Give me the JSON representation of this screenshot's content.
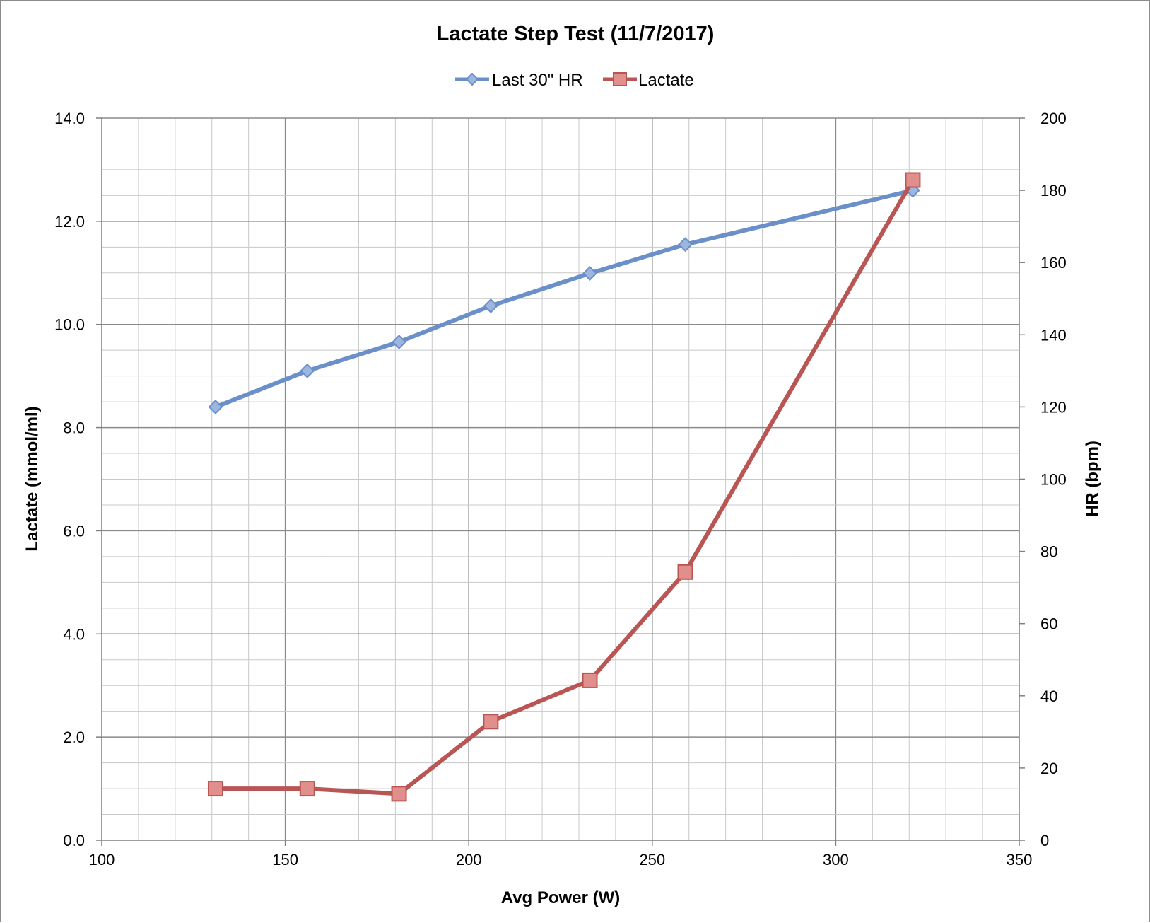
{
  "chart_data": {
    "type": "line",
    "title": "Lactate Step Test (11/7/2017)",
    "xlabel": "Avg Power (W)",
    "ylabel_left": "Lactate (mmol/ml)",
    "ylabel_right": "HR (bpm)",
    "xlim": [
      100,
      350
    ],
    "ylim_left": [
      0,
      14
    ],
    "ylim_right": [
      0,
      200
    ],
    "x_ticks": [
      "100",
      "150",
      "200",
      "250",
      "300",
      "350"
    ],
    "y_left_ticks": [
      "0.0",
      "2.0",
      "4.0",
      "6.0",
      "8.0",
      "10.0",
      "12.0",
      "14.0"
    ],
    "y_right_ticks": [
      "0",
      "20",
      "40",
      "60",
      "80",
      "100",
      "120",
      "140",
      "160",
      "180",
      "200"
    ],
    "grid": true,
    "legend_position": "top",
    "series": [
      {
        "name": "Last 30\" HR",
        "axis": "right",
        "color": "#6b8fc9",
        "marker": "diamond",
        "x": [
          131,
          156,
          181,
          206,
          233,
          259,
          321
        ],
        "y": [
          120,
          130,
          138,
          148,
          157,
          165,
          180
        ]
      },
      {
        "name": "Lactate",
        "axis": "left",
        "color": "#b95553",
        "marker": "square",
        "x": [
          131,
          156,
          181,
          206,
          233,
          259,
          321
        ],
        "y": [
          1.0,
          1.0,
          0.9,
          2.3,
          3.1,
          5.2,
          12.8
        ]
      }
    ]
  }
}
